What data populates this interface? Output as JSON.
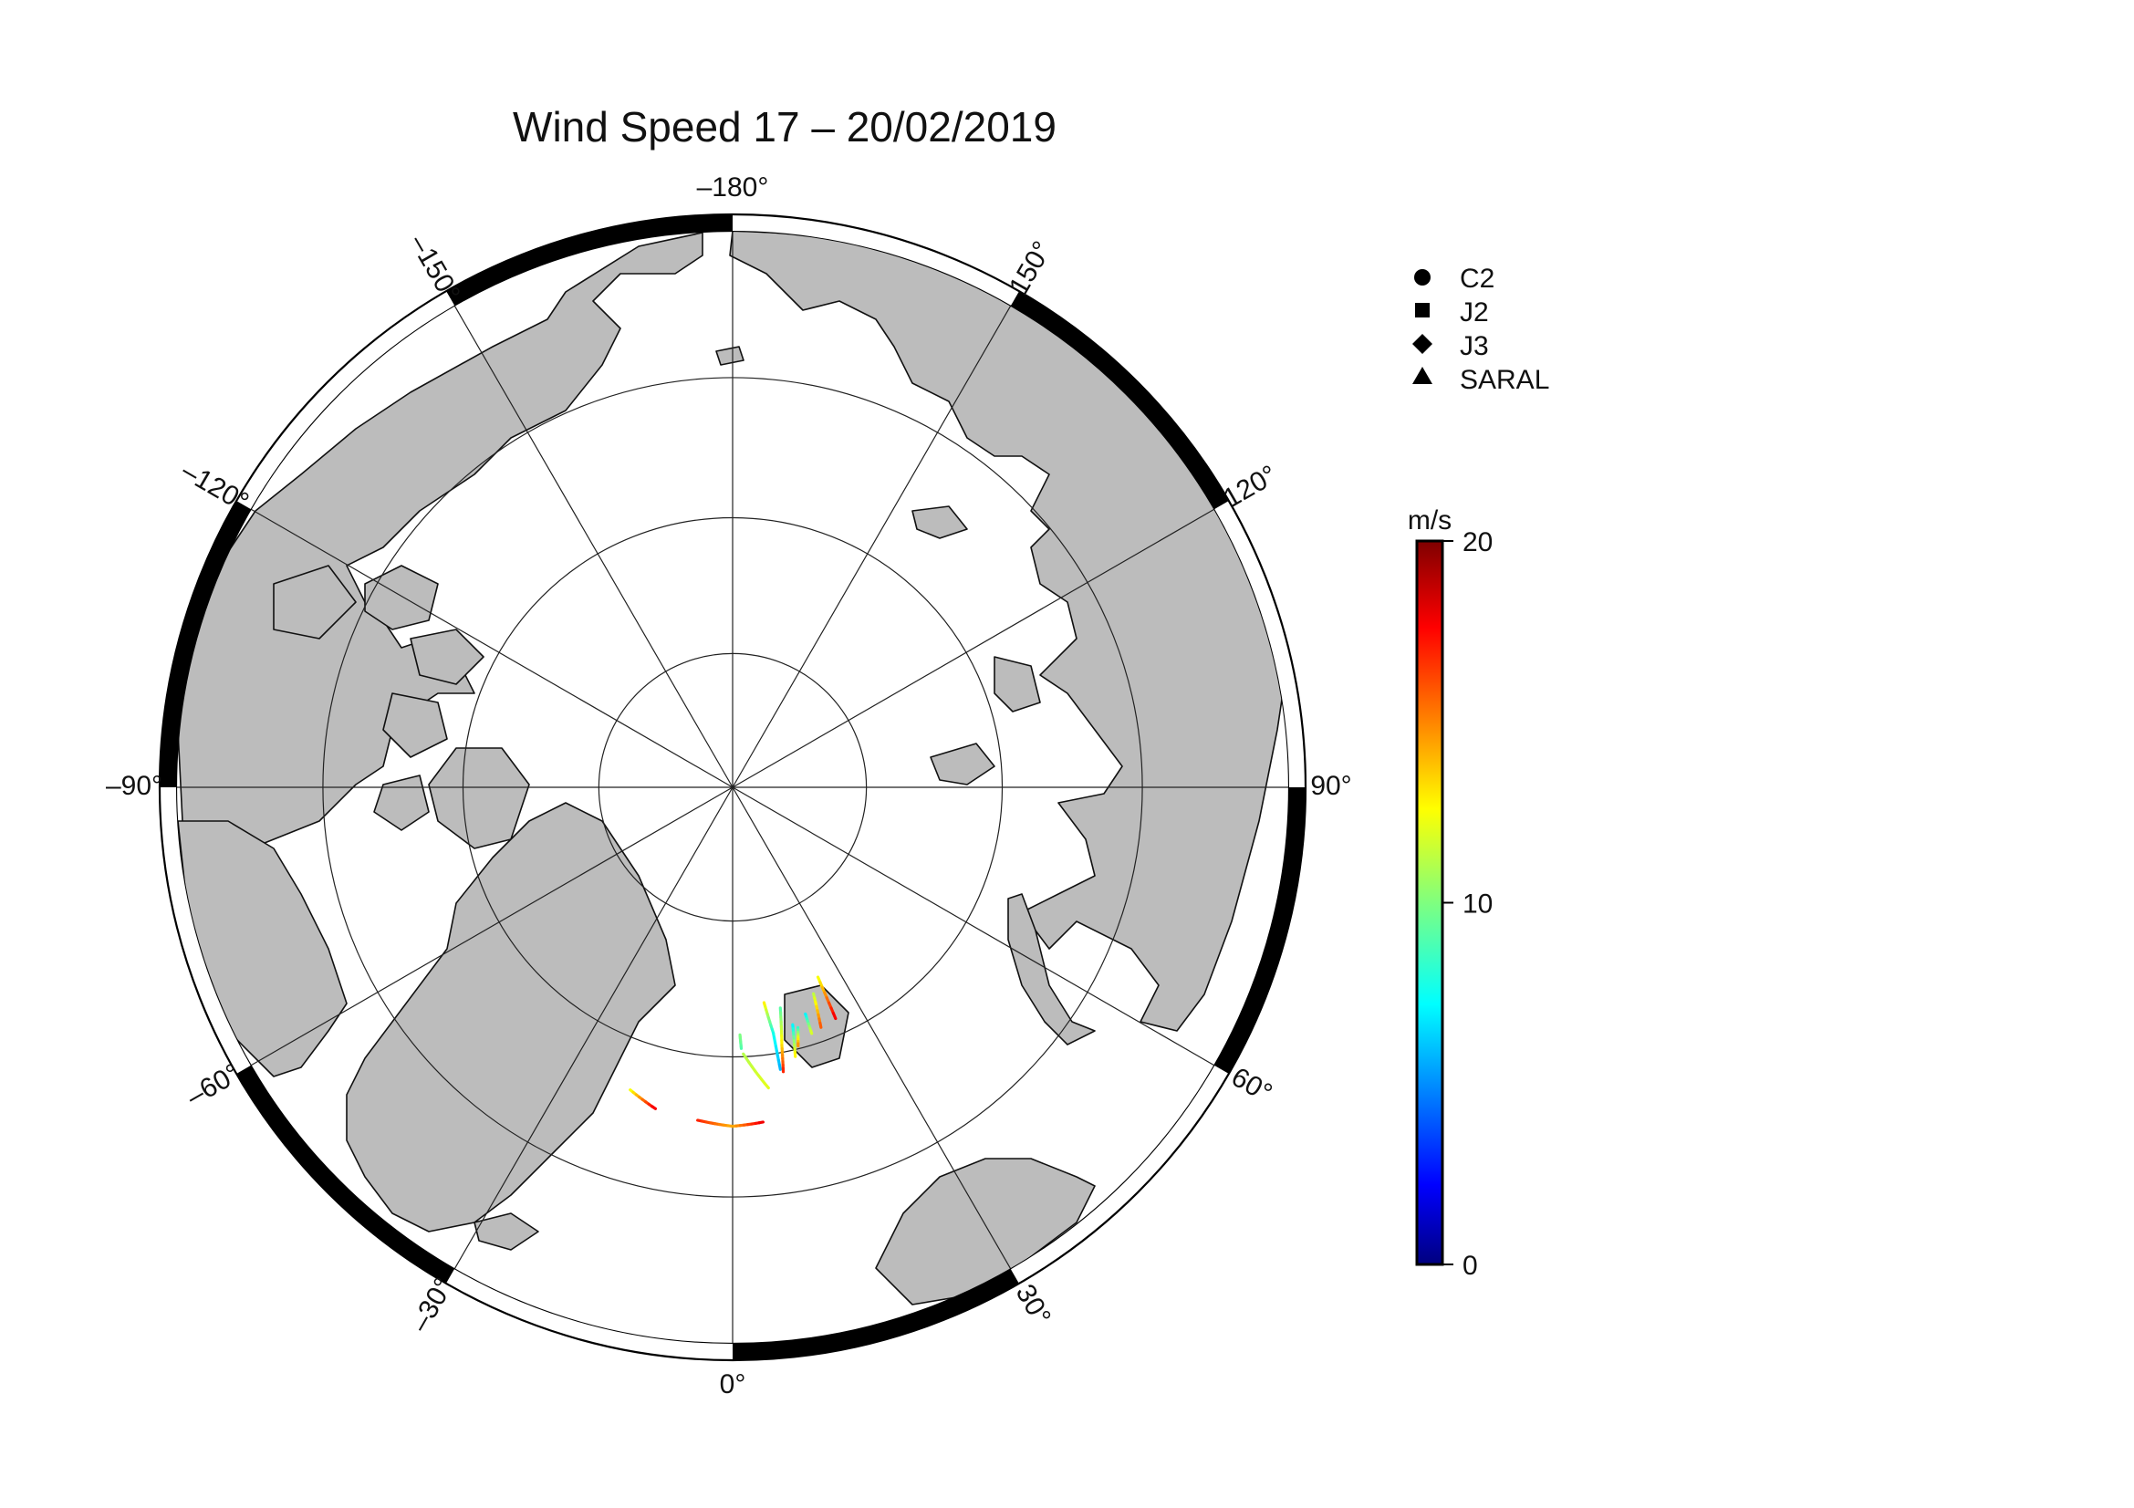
{
  "title": "Wind Speed 17 – 20/02/2019",
  "map": {
    "projection": "north polar stereographic",
    "latitude_circles_deg": [
      80,
      70,
      60
    ],
    "longitude_labels": [
      {
        "lon": -180,
        "text": "–180°"
      },
      {
        "lon": 150,
        "text": "150°"
      },
      {
        "lon": 120,
        "text": "120°"
      },
      {
        "lon": 90,
        "text": "90°"
      },
      {
        "lon": 60,
        "text": "60°"
      },
      {
        "lon": 30,
        "text": "30°"
      },
      {
        "lon": 0,
        "text": "0°"
      },
      {
        "lon": -30,
        "text": "–30°"
      },
      {
        "lon": -60,
        "text": "–60°"
      },
      {
        "lon": -90,
        "text": "–90°"
      },
      {
        "lon": -120,
        "text": "–120°"
      },
      {
        "lon": -150,
        "text": "–150°"
      }
    ],
    "land_color": "#bcbcbc",
    "ocean_color": "#ffffff"
  },
  "legend": {
    "items": [
      {
        "symbol": "circle",
        "label": "C2"
      },
      {
        "symbol": "square",
        "label": "J2"
      },
      {
        "symbol": "diamond",
        "label": "J3"
      },
      {
        "symbol": "triangle",
        "label": "SARAL"
      }
    ]
  },
  "colorbar": {
    "unit": "m/s",
    "min": 0,
    "max": 20,
    "ticks": [
      {
        "value": 20,
        "label": "20"
      },
      {
        "value": 10,
        "label": "10"
      },
      {
        "value": 0,
        "label": "0"
      }
    ],
    "colormap": "jet"
  },
  "chart_data": {
    "type": "scatter",
    "title": "Wind Speed 17 – 20/02/2019",
    "value_unit": "m/s",
    "value_range": [
      0,
      20
    ],
    "tracks_note_units": "lon/lat in degrees, value in m/s",
    "series": [
      {
        "points": [
          [
            1.9,
            70.6,
            9
          ],
          [
            1.7,
            71.6,
            10
          ]
        ]
      },
      {
        "points": [
          [
            2.3,
            70.2,
            11
          ],
          [
            6.8,
            67.6,
            12
          ]
        ]
      },
      {
        "points": [
          [
            8.3,
            73.8,
            13
          ],
          [
            9.4,
            71.5,
            8
          ],
          [
            9.6,
            68.8,
            6
          ]
        ]
      },
      {
        "points": [
          [
            12.2,
            73.2,
            9
          ],
          [
            10.8,
            70.5,
            13
          ],
          [
            10.1,
            68.6,
            17
          ]
        ]
      },
      {
        "points": [
          [
            14.2,
            71.8,
            7
          ],
          [
            13.1,
            69.5,
            13
          ]
        ]
      },
      {
        "points": [
          [
            15.2,
            71.5,
            8
          ],
          [
            14.2,
            70.2,
            15
          ]
        ]
      },
      {
        "points": [
          [
            17.8,
            72.3,
            7
          ],
          [
            17.8,
            70.8,
            12
          ]
        ]
      },
      {
        "points": [
          [
            21.4,
            73.5,
            11
          ],
          [
            20.2,
            71.0,
            16
          ]
        ]
      },
      {
        "points": [
          [
            24.2,
            74.5,
            12
          ],
          [
            24.0,
            71.2,
            18
          ]
        ]
      },
      {
        "points": [
          [
            -18.7,
            66.4,
            12
          ],
          [
            -13.5,
            65.6,
            18
          ]
        ]
      },
      {
        "points": [
          [
            -6.0,
            65.3,
            17
          ],
          [
            0.0,
            65.0,
            14
          ],
          [
            5.2,
            65.2,
            18
          ]
        ]
      }
    ]
  }
}
